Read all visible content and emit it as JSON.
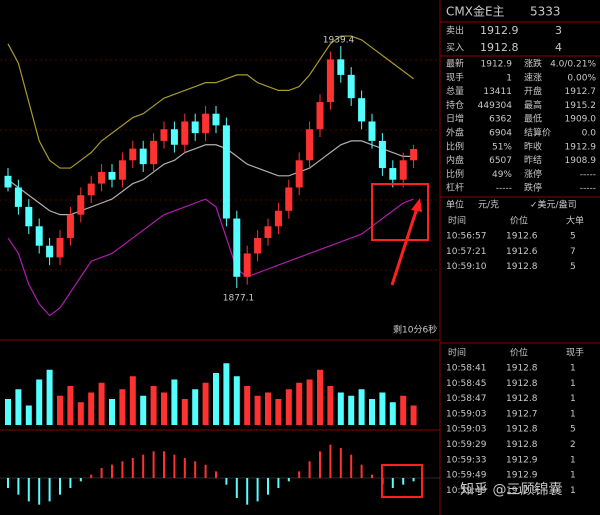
{
  "chart_data": {
    "type": "candlestick",
    "ylim": [
      1865,
      1950
    ],
    "open": [
      1906,
      1903,
      1898,
      1893,
      1888,
      1885,
      1890,
      1896,
      1901,
      1904,
      1907,
      1905,
      1910,
      1913,
      1909,
      1915,
      1918,
      1914,
      1920,
      1917,
      1922,
      1919,
      1895,
      1880,
      1886,
      1890,
      1893,
      1897,
      1903,
      1910,
      1918,
      1925,
      1936,
      1932,
      1926,
      1920,
      1915,
      1908,
      1905,
      1910
    ],
    "high": [
      1908,
      1905,
      1900,
      1895,
      1890,
      1892,
      1898,
      1903,
      1906,
      1909,
      1909,
      1912,
      1915,
      1915,
      1917,
      1920,
      1920,
      1922,
      1922,
      1924,
      1924,
      1921,
      1897,
      1888,
      1892,
      1895,
      1899,
      1905,
      1912,
      1920,
      1927,
      1938,
      1939.4,
      1934,
      1928,
      1922,
      1917,
      1910,
      1912,
      1914
    ],
    "low": [
      1902,
      1896,
      1891,
      1886,
      1883,
      1883,
      1888,
      1894,
      1899,
      1902,
      1903,
      1903,
      1908,
      1907,
      1907,
      1913,
      1912,
      1912,
      1915,
      1915,
      1917,
      1893,
      1877.1,
      1878,
      1884,
      1888,
      1891,
      1895,
      1901,
      1908,
      1916,
      1923,
      1930,
      1924,
      1918,
      1913,
      1906,
      1903,
      1903,
      1908
    ],
    "close": [
      1903,
      1898,
      1893,
      1888,
      1885,
      1890,
      1896,
      1901,
      1904,
      1907,
      1905,
      1910,
      1913,
      1909,
      1915,
      1918,
      1914,
      1920,
      1917,
      1922,
      1919,
      1895,
      1880,
      1886,
      1890,
      1893,
      1897,
      1903,
      1910,
      1918,
      1925,
      1936,
      1932,
      1926,
      1920,
      1915,
      1908,
      1905,
      1910,
      1912.9
    ],
    "upper": [
      1940,
      1935,
      1925,
      1915,
      1910,
      1908,
      1908,
      1910,
      1912,
      1915,
      1917,
      1919,
      1921,
      1922,
      1924,
      1926,
      1927,
      1928,
      1929,
      1930,
      1930,
      1931,
      1932,
      1932,
      1930,
      1929,
      1928,
      1928,
      1929,
      1932,
      1936,
      1940,
      1942,
      1942,
      1941,
      1939,
      1937,
      1935,
      1933,
      1931
    ],
    "mid": [
      1905,
      1903,
      1901,
      1899,
      1897,
      1896,
      1896,
      1897,
      1898,
      1899,
      1900,
      1902,
      1904,
      1905,
      1907,
      1909,
      1910,
      1912,
      1913,
      1914,
      1914,
      1913,
      1911,
      1909,
      1908,
      1907,
      1906,
      1906,
      1907,
      1908,
      1910,
      1912,
      1914,
      1915,
      1915,
      1914,
      1913,
      1912,
      1911,
      1911
    ],
    "lower": [
      1890,
      1886,
      1878,
      1873,
      1870,
      1872,
      1876,
      1880,
      1884,
      1885,
      1886,
      1888,
      1890,
      1892,
      1894,
      1896,
      1897,
      1898,
      1899,
      1900,
      1898,
      1890,
      1882,
      1880,
      1881,
      1882,
      1883,
      1884,
      1885,
      1886,
      1887,
      1888,
      1889,
      1890,
      1891,
      1893,
      1895,
      1897,
      1899,
      1900
    ],
    "band_colors": {
      "upper": "#a89a2a",
      "mid": "#b0b0b0",
      "lower": "#b01cb0"
    },
    "up_color": "#ff3232",
    "down_color": "#54ffff",
    "volume": [
      40,
      55,
      30,
      70,
      85,
      45,
      60,
      35,
      50,
      65,
      40,
      55,
      75,
      45,
      60,
      50,
      70,
      40,
      55,
      65,
      80,
      95,
      75,
      60,
      45,
      50,
      40,
      55,
      65,
      70,
      85,
      60,
      50,
      45,
      55,
      40,
      50,
      35,
      45,
      30
    ],
    "volume_lim": [
      0,
      100
    ],
    "macd": [
      -0.3,
      -0.5,
      -0.7,
      -0.8,
      -0.7,
      -0.5,
      -0.3,
      -0.1,
      0.1,
      0.3,
      0.4,
      0.5,
      0.6,
      0.7,
      0.8,
      0.8,
      0.7,
      0.6,
      0.5,
      0.4,
      0.2,
      -0.2,
      -0.6,
      -0.8,
      -0.7,
      -0.5,
      -0.3,
      -0.1,
      0.2,
      0.5,
      0.8,
      1.0,
      0.9,
      0.7,
      0.4,
      0.1,
      -0.2,
      -0.3,
      -0.2,
      -0.1
    ],
    "macd_lim": [
      -1.2,
      1.2
    ],
    "countdown": "剩10分6秒"
  },
  "quote": {
    "title": "CMX金E主",
    "code": "5333",
    "sell": [
      "卖出",
      "1912.9",
      "3"
    ],
    "buy": [
      "买入",
      "1912.8",
      "4"
    ],
    "rows": [
      [
        "最新",
        "1912.9",
        "涨跌",
        "4.0/0.21%"
      ],
      [
        "现手",
        "1",
        "速涨",
        "0.00%"
      ],
      [
        "总量",
        "13411",
        "开盘",
        "1912.7"
      ],
      [
        "持仓",
        "449304",
        "最高",
        "1915.2"
      ],
      [
        "日增",
        "6362",
        "最低",
        "1909.0"
      ],
      [
        "外盘",
        "6904",
        "结算价",
        "0.0"
      ],
      [
        "比例",
        "51%",
        "昨收",
        "1912.9"
      ],
      [
        "内盘",
        "6507",
        "昨结",
        "1908.9"
      ],
      [
        "比例",
        "49%",
        "涨停",
        "-----"
      ],
      [
        "杠杆",
        "-----",
        "跌停",
        "-----"
      ]
    ],
    "row_colors": [
      [
        "#ff3c3c",
        "#ff3c3c"
      ],
      [
        "#ffffff",
        "#ffffff"
      ],
      [
        "#ffff3c",
        "#ff3c3c"
      ],
      [
        "#ffff3c",
        "#ff3c3c"
      ],
      [
        "#ffff3c",
        "#3cff3c"
      ],
      [
        "#ff3c3c",
        "#ffffff"
      ],
      [
        "#ff3c3c",
        "#ffffff"
      ],
      [
        "#3cff3c",
        "#ffffff"
      ],
      [
        "#3cff3c",
        "#ffffff"
      ],
      [
        "#ffffff",
        "#ffffff"
      ]
    ],
    "unit": [
      "单位",
      "元/克",
      "✓美元/盎司"
    ]
  },
  "big_orders": {
    "header": [
      "时间",
      "价位",
      "大单"
    ],
    "rows": [
      {
        "time": "10:56:57",
        "price": "1912.6",
        "qty": "5",
        "color": "#3cff3c"
      },
      {
        "time": "10:57:21",
        "price": "1912.6",
        "qty": "7",
        "color": "#3cff3c"
      },
      {
        "time": "10:59:10",
        "price": "1912.8",
        "qty": "5",
        "color": "#ff3c3c"
      }
    ]
  },
  "ticks": {
    "header": [
      "时间",
      "价位",
      "现手"
    ],
    "rows": [
      {
        "time": "10:58:41",
        "price": "1912.8",
        "qty": "1",
        "color": "#3cff3c"
      },
      {
        "time": "10:58:45",
        "price": "1912.8",
        "qty": "1",
        "color": "#3cff3c"
      },
      {
        "time": "10:58:47",
        "price": "1912.8",
        "qty": "1",
        "color": "#3cff3c"
      },
      {
        "time": "10:59:03",
        "price": "1912.7",
        "qty": "1",
        "color": "#3cff3c"
      },
      {
        "time": "10:59:03",
        "price": "1912.8",
        "qty": "5",
        "color": "#ff3c3c"
      },
      {
        "time": "10:59:29",
        "price": "1912.8",
        "qty": "2",
        "color": "#3cff3c"
      },
      {
        "time": "10:59:33",
        "price": "1912.9",
        "qty": "1",
        "color": "#ff3c3c"
      },
      {
        "time": "10:59:49",
        "price": "1912.9",
        "qty": "1",
        "color": "#ff3c3c"
      },
      {
        "time": "10:59:49",
        "price": "1912.9",
        "qty": "1",
        "color": "#ff3c3c"
      }
    ]
  },
  "watermark": "知乎 @三顾锦囊"
}
